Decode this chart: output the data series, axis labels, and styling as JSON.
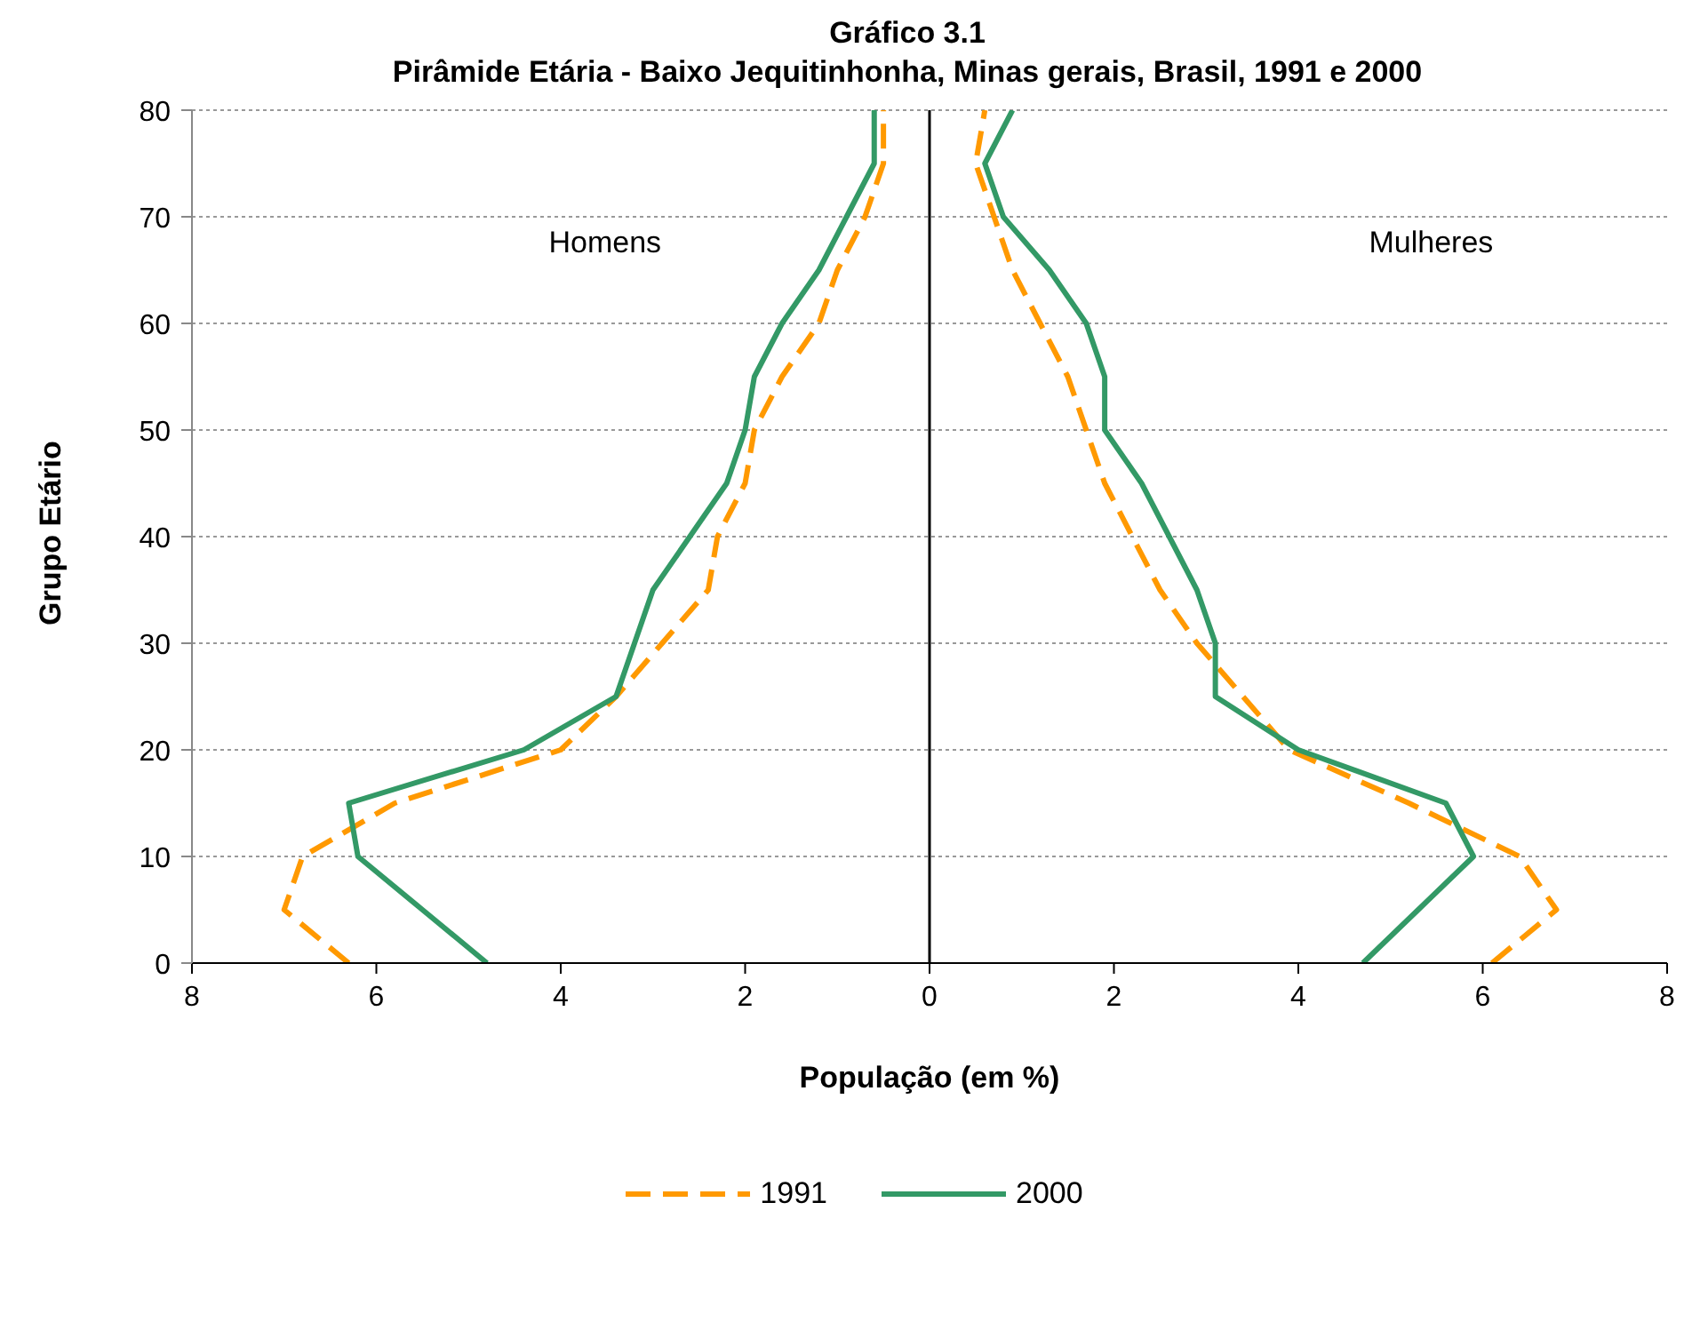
{
  "chart_data": {
    "type": "line",
    "title": "Gráfico 3.1",
    "subtitle": "Pirâmide Etária - Baixo Jequitinhonha, Minas gerais, Brasil, 1991 e 2000",
    "xlabel": "População (em %)",
    "ylabel": "Grupo Etário",
    "annotations": [
      "Homens",
      "Mulheres"
    ],
    "series": [
      {
        "name": "1991",
        "color": "#ff9900",
        "line_style": "dashed",
        "x": [
          -6.3,
          -7.0,
          -6.8,
          -5.8,
          -4.0,
          -3.4,
          -2.9,
          -2.4,
          -2.3,
          -2.0,
          -1.9,
          -1.6,
          -1.2,
          -1.0,
          -0.7,
          -0.5,
          -0.5
        ],
        "values": [
          0,
          5,
          10,
          15,
          20,
          25,
          30,
          35,
          40,
          45,
          50,
          55,
          60,
          65,
          70,
          75,
          80
        ]
      },
      {
        "name": "2000",
        "color": "#339966",
        "line_style": "solid",
        "x": [
          -4.8,
          -5.5,
          -6.2,
          -6.3,
          -4.4,
          -3.4,
          -3.2,
          -3.0,
          -2.6,
          -2.2,
          -2.0,
          -1.9,
          -1.6,
          -1.2,
          -0.9,
          -0.6,
          -0.6
        ],
        "values": [
          0,
          5,
          10,
          15,
          20,
          25,
          30,
          35,
          40,
          45,
          50,
          55,
          60,
          65,
          70,
          75,
          80
        ]
      },
      {
        "color": "#ff9900",
        "line_style": "dashed",
        "x": [
          6.1,
          6.8,
          6.4,
          5.2,
          3.9,
          3.4,
          2.9,
          2.5,
          2.2,
          1.9,
          1.7,
          1.5,
          1.2,
          0.9,
          0.7,
          0.5,
          0.6
        ],
        "values": [
          0,
          5,
          10,
          15,
          20,
          25,
          30,
          35,
          40,
          45,
          50,
          55,
          60,
          65,
          70,
          75,
          80
        ]
      },
      {
        "color": "#339966",
        "line_style": "solid",
        "x": [
          4.7,
          5.3,
          5.9,
          5.6,
          4.0,
          3.1,
          3.1,
          2.9,
          2.6,
          2.3,
          1.9,
          1.9,
          1.7,
          1.3,
          0.8,
          0.6,
          0.9
        ],
        "values": [
          0,
          5,
          10,
          15,
          20,
          25,
          30,
          35,
          40,
          45,
          50,
          55,
          60,
          65,
          70,
          75,
          80
        ]
      }
    ],
    "xlim": [
      -8,
      8
    ],
    "xticks": [
      {
        "value": -8,
        "label": "8"
      },
      {
        "value": -6,
        "label": "6"
      },
      {
        "value": -4,
        "label": "4"
      },
      {
        "value": -2,
        "label": "2"
      },
      0,
      2,
      4,
      6,
      8
    ],
    "ylim": [
      0,
      80
    ],
    "yticks": [
      0,
      10,
      20,
      30,
      40,
      50,
      60,
      70,
      80
    ],
    "ref_lines": [
      {
        "axis": "x",
        "value": 0,
        "color": "#000000"
      }
    ],
    "grid": "y",
    "legend": "bottom",
    "marker": "none"
  }
}
